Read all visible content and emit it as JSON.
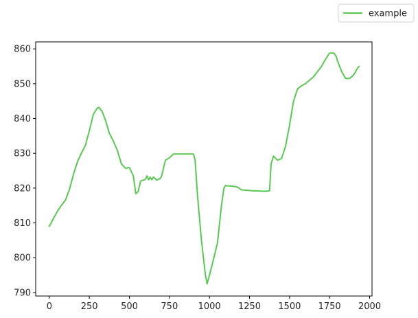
{
  "chart_data": {
    "type": "line",
    "title": "",
    "xlabel": "",
    "ylabel": "",
    "xlim": [
      -85,
      2015
    ],
    "ylim": [
      789,
      862
    ],
    "xticks": [
      0,
      250,
      500,
      750,
      1000,
      1250,
      1500,
      1750,
      2000
    ],
    "yticks": [
      790,
      800,
      810,
      820,
      830,
      840,
      850,
      860
    ],
    "grid": false,
    "legend": {
      "placement": "top-right, outside plot"
    },
    "series": [
      {
        "name": "example",
        "color": "#5ac752",
        "x": [
          0,
          25,
          50,
          75,
          100,
          125,
          150,
          175,
          200,
          225,
          250,
          275,
          300,
          310,
          330,
          350,
          375,
          400,
          425,
          450,
          475,
          500,
          525,
          540,
          555,
          570,
          600,
          610,
          620,
          630,
          640,
          650,
          670,
          690,
          700,
          725,
          750,
          775,
          800,
          825,
          850,
          875,
          900,
          910,
          925,
          950,
          975,
          985,
          1000,
          1025,
          1050,
          1075,
          1090,
          1100,
          1125,
          1150,
          1175,
          1200,
          1225,
          1250,
          1275,
          1300,
          1325,
          1350,
          1375,
          1385,
          1400,
          1425,
          1450,
          1475,
          1500,
          1525,
          1550,
          1575,
          1600,
          1625,
          1650,
          1675,
          1700,
          1725,
          1750,
          1775,
          1790,
          1800,
          1825,
          1850,
          1875,
          1900,
          1925,
          1935
        ],
        "y": [
          809,
          811.2,
          813.3,
          815,
          816.5,
          819.5,
          823.8,
          827.5,
          830,
          832.2,
          836.5,
          841.2,
          843,
          843.2,
          842,
          839.6,
          835.8,
          833.5,
          830.8,
          827,
          825.7,
          825.9,
          823.5,
          818.4,
          819,
          822,
          822.5,
          823.5,
          822.4,
          823.2,
          822.4,
          823.2,
          822.3,
          822.7,
          823.3,
          828,
          828.7,
          829.8,
          829.8,
          829.8,
          829.8,
          829.8,
          829.8,
          828.2,
          818,
          805,
          795,
          792.5,
          795,
          799.5,
          804.2,
          815,
          820,
          820.7,
          820.6,
          820.5,
          820.3,
          819.5,
          819.4,
          819.3,
          819.2,
          819.2,
          819.1,
          819.1,
          819.2,
          827,
          829.2,
          828,
          828.5,
          832,
          838,
          845,
          848.5,
          849.4,
          850,
          851,
          852,
          853.5,
          855,
          857,
          858.8,
          858.8,
          858,
          856.5,
          853.5,
          851.5,
          851.5,
          852.5,
          854.5,
          855
        ]
      }
    ]
  }
}
